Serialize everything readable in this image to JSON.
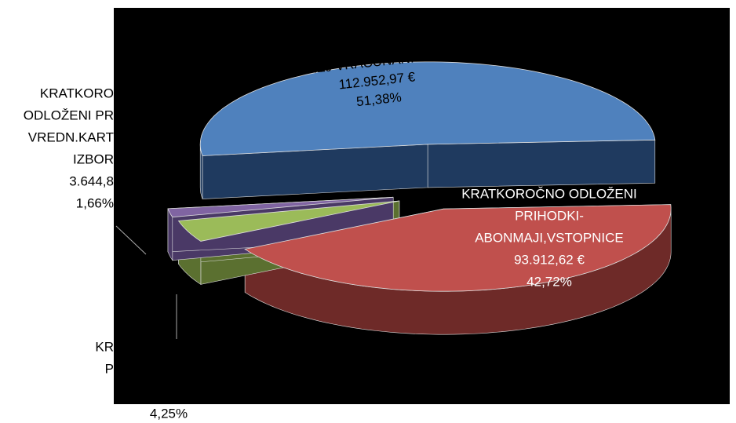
{
  "chart_data": {
    "type": "pie",
    "values": [
      51.38,
      42.72,
      4.25,
      1.66
    ],
    "value_labels": [
      "51,38%",
      "42,72%",
      "4,25%",
      "1,66%"
    ],
    "colors": [
      "#4f81bd",
      "#c0504d",
      "#9bbb59",
      "#8064a2"
    ],
    "side_colors": [
      "#1f3a5f",
      "#6e2a28",
      "#5b7030",
      "#4a3966"
    ],
    "labels": [
      [
        "VNAPREJ VRAČUNANI ODHODKI",
        "112.952,97 €"
      ],
      [
        "KRATKOROČNO ODLOŽENI",
        "PRIHODKI-",
        "ABONMAJI,VSTOPNICE",
        "93.912,62 €"
      ],
      [
        "KR",
        "P"
      ],
      [
        "KRATKORO",
        "ODLOŽENI PR",
        "VREDN.KART",
        "IZBOR",
        "3.644,8"
      ]
    ]
  }
}
